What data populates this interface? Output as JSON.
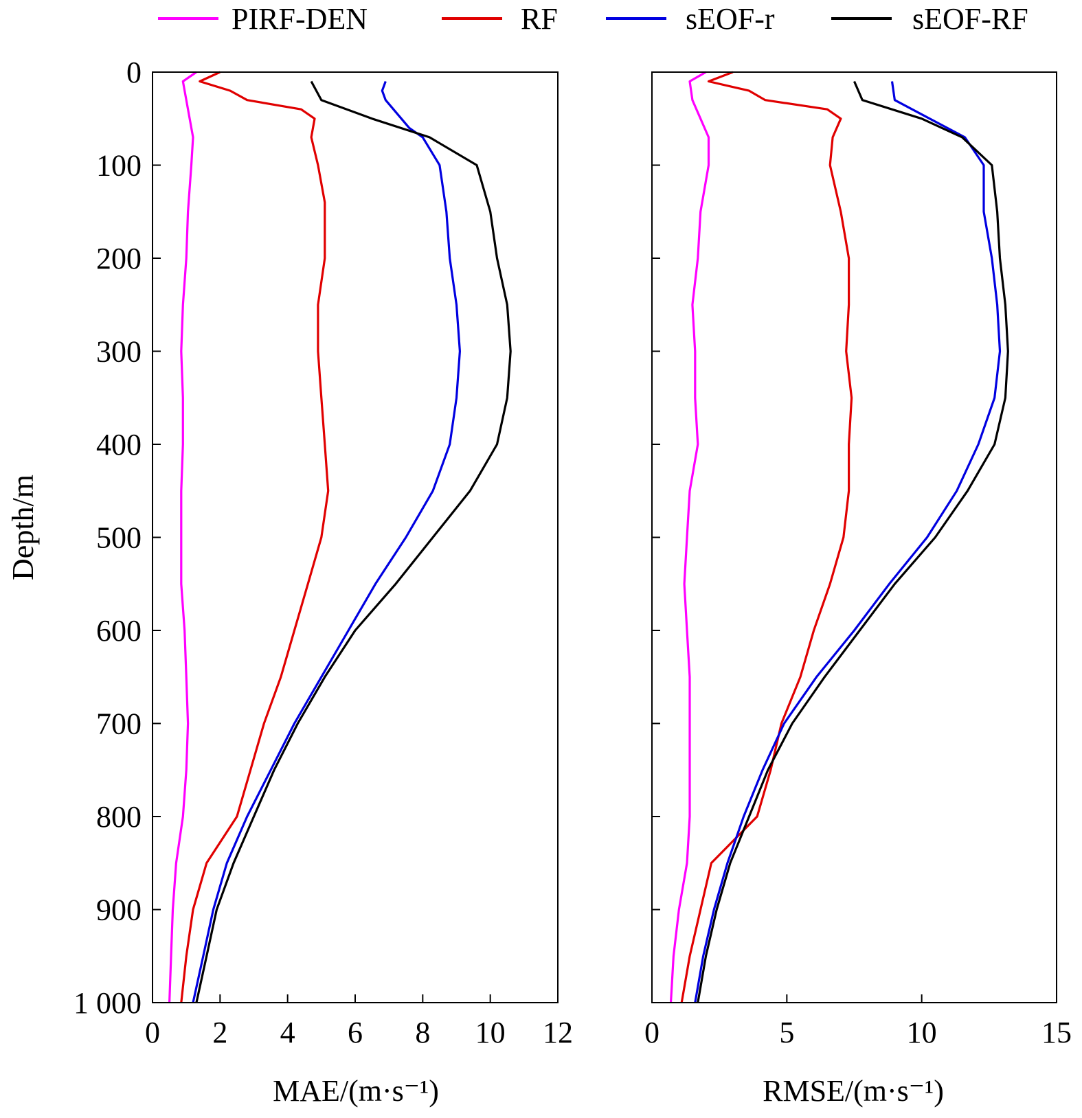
{
  "legend": {
    "placement": "top",
    "items": [
      {
        "label": "PIRF-DEN",
        "color": "#ff00ff"
      },
      {
        "label": "RF",
        "color": "#e00000"
      },
      {
        "label": "sEOF-r",
        "color": "#0000e0"
      },
      {
        "label": "sEOF-RF",
        "color": "#000000"
      }
    ]
  },
  "shared_ylabel": "Depth/m",
  "chart_data": [
    {
      "type": "line",
      "orientation": "depth-profile",
      "xlabel": "MAE/(m·s⁻¹)",
      "ylabel": "Depth/m",
      "xlim": [
        0,
        12
      ],
      "ylim": [
        1000,
        0
      ],
      "x_ticks": [
        "0",
        "2",
        "4",
        "6",
        "8",
        "10",
        "12"
      ],
      "y_ticks": [
        "0",
        "100",
        "200",
        "300",
        "400",
        "500",
        "600",
        "700",
        "800",
        "900",
        "1 000"
      ],
      "grid": false,
      "series": [
        {
          "name": "PIRF-DEN",
          "color": "#ff00ff",
          "points": [
            [
              1.3,
              0
            ],
            [
              0.9,
              10
            ],
            [
              1.0,
              30
            ],
            [
              1.1,
              50
            ],
            [
              1.2,
              70
            ],
            [
              1.15,
              100
            ],
            [
              1.05,
              150
            ],
            [
              1.0,
              200
            ],
            [
              0.9,
              250
            ],
            [
              0.85,
              300
            ],
            [
              0.9,
              350
            ],
            [
              0.9,
              400
            ],
            [
              0.85,
              450
            ],
            [
              0.85,
              500
            ],
            [
              0.85,
              550
            ],
            [
              0.95,
              600
            ],
            [
              1.0,
              650
            ],
            [
              1.05,
              700
            ],
            [
              1.0,
              750
            ],
            [
              0.9,
              800
            ],
            [
              0.7,
              850
            ],
            [
              0.6,
              900
            ],
            [
              0.55,
              950
            ],
            [
              0.5,
              1000
            ]
          ]
        },
        {
          "name": "RF",
          "color": "#e00000",
          "points": [
            [
              2.0,
              0
            ],
            [
              1.4,
              10
            ],
            [
              2.3,
              20
            ],
            [
              2.8,
              30
            ],
            [
              4.4,
              40
            ],
            [
              4.8,
              50
            ],
            [
              4.7,
              70
            ],
            [
              4.9,
              100
            ],
            [
              5.1,
              140
            ],
            [
              5.1,
              200
            ],
            [
              4.9,
              250
            ],
            [
              4.9,
              300
            ],
            [
              5.0,
              350
            ],
            [
              5.1,
              400
            ],
            [
              5.2,
              450
            ],
            [
              5.0,
              500
            ],
            [
              4.6,
              550
            ],
            [
              4.2,
              600
            ],
            [
              3.8,
              650
            ],
            [
              3.3,
              700
            ],
            [
              2.9,
              750
            ],
            [
              2.5,
              800
            ],
            [
              1.6,
              850
            ],
            [
              1.2,
              900
            ],
            [
              1.0,
              950
            ],
            [
              0.85,
              1000
            ]
          ]
        },
        {
          "name": "sEOF-r",
          "color": "#0000e0",
          "points": [
            [
              6.9,
              10
            ],
            [
              6.8,
              20
            ],
            [
              6.9,
              30
            ],
            [
              7.6,
              60
            ],
            [
              8.0,
              70
            ],
            [
              8.5,
              100
            ],
            [
              8.7,
              150
            ],
            [
              8.8,
              200
            ],
            [
              9.0,
              250
            ],
            [
              9.1,
              300
            ],
            [
              9.0,
              350
            ],
            [
              8.8,
              400
            ],
            [
              8.3,
              450
            ],
            [
              7.5,
              500
            ],
            [
              6.6,
              550
            ],
            [
              5.8,
              600
            ],
            [
              5.0,
              650
            ],
            [
              4.2,
              700
            ],
            [
              3.5,
              750
            ],
            [
              2.8,
              800
            ],
            [
              2.2,
              850
            ],
            [
              1.8,
              900
            ],
            [
              1.5,
              950
            ],
            [
              1.2,
              1000
            ]
          ]
        },
        {
          "name": "sEOF-RF",
          "color": "#000000",
          "points": [
            [
              4.7,
              10
            ],
            [
              5.0,
              30
            ],
            [
              6.5,
              50
            ],
            [
              8.2,
              70
            ],
            [
              9.6,
              100
            ],
            [
              10.0,
              150
            ],
            [
              10.2,
              200
            ],
            [
              10.5,
              250
            ],
            [
              10.6,
              300
            ],
            [
              10.5,
              350
            ],
            [
              10.2,
              400
            ],
            [
              9.4,
              450
            ],
            [
              8.3,
              500
            ],
            [
              7.2,
              550
            ],
            [
              6.0,
              600
            ],
            [
              5.1,
              650
            ],
            [
              4.3,
              700
            ],
            [
              3.6,
              750
            ],
            [
              3.0,
              800
            ],
            [
              2.4,
              850
            ],
            [
              1.9,
              900
            ],
            [
              1.6,
              950
            ],
            [
              1.3,
              1000
            ]
          ]
        }
      ]
    },
    {
      "type": "line",
      "orientation": "depth-profile",
      "xlabel": "RMSE/(m·s⁻¹)",
      "ylabel": "",
      "xlim": [
        0,
        15
      ],
      "ylim": [
        1000,
        0
      ],
      "x_ticks": [
        "0",
        "5",
        "10",
        "15"
      ],
      "grid": false,
      "series": [
        {
          "name": "PIRF-DEN",
          "color": "#ff00ff",
          "points": [
            [
              2.0,
              0
            ],
            [
              1.4,
              10
            ],
            [
              1.5,
              30
            ],
            [
              1.8,
              50
            ],
            [
              2.1,
              70
            ],
            [
              2.1,
              100
            ],
            [
              1.8,
              150
            ],
            [
              1.7,
              200
            ],
            [
              1.5,
              250
            ],
            [
              1.6,
              300
            ],
            [
              1.6,
              350
            ],
            [
              1.7,
              400
            ],
            [
              1.4,
              450
            ],
            [
              1.3,
              500
            ],
            [
              1.2,
              550
            ],
            [
              1.3,
              600
            ],
            [
              1.4,
              650
            ],
            [
              1.4,
              700
            ],
            [
              1.4,
              750
            ],
            [
              1.4,
              800
            ],
            [
              1.3,
              850
            ],
            [
              1.0,
              900
            ],
            [
              0.8,
              950
            ],
            [
              0.7,
              1000
            ]
          ]
        },
        {
          "name": "RF",
          "color": "#e00000",
          "points": [
            [
              3.0,
              0
            ],
            [
              2.1,
              10
            ],
            [
              3.6,
              20
            ],
            [
              4.2,
              30
            ],
            [
              6.5,
              40
            ],
            [
              7.0,
              50
            ],
            [
              6.7,
              70
            ],
            [
              6.6,
              100
            ],
            [
              7.0,
              150
            ],
            [
              7.3,
              200
            ],
            [
              7.3,
              250
            ],
            [
              7.2,
              300
            ],
            [
              7.4,
              350
            ],
            [
              7.3,
              400
            ],
            [
              7.3,
              450
            ],
            [
              7.1,
              500
            ],
            [
              6.6,
              550
            ],
            [
              6.0,
              600
            ],
            [
              5.5,
              650
            ],
            [
              4.8,
              700
            ],
            [
              4.4,
              750
            ],
            [
              3.9,
              800
            ],
            [
              2.2,
              850
            ],
            [
              1.8,
              900
            ],
            [
              1.4,
              950
            ],
            [
              1.1,
              1000
            ]
          ]
        },
        {
          "name": "sEOF-r",
          "color": "#0000e0",
          "points": [
            [
              8.9,
              10
            ],
            [
              9.0,
              30
            ],
            [
              10.3,
              50
            ],
            [
              11.6,
              70
            ],
            [
              12.3,
              100
            ],
            [
              12.3,
              150
            ],
            [
              12.6,
              200
            ],
            [
              12.8,
              250
            ],
            [
              12.9,
              300
            ],
            [
              12.7,
              350
            ],
            [
              12.1,
              400
            ],
            [
              11.3,
              450
            ],
            [
              10.2,
              500
            ],
            [
              8.8,
              550
            ],
            [
              7.5,
              600
            ],
            [
              6.1,
              650
            ],
            [
              4.9,
              700
            ],
            [
              4.1,
              750
            ],
            [
              3.4,
              800
            ],
            [
              2.8,
              850
            ],
            [
              2.3,
              900
            ],
            [
              1.9,
              950
            ],
            [
              1.6,
              1000
            ]
          ]
        },
        {
          "name": "sEOF-RF",
          "color": "#000000",
          "points": [
            [
              7.5,
              10
            ],
            [
              7.8,
              30
            ],
            [
              10.0,
              50
            ],
            [
              11.5,
              70
            ],
            [
              12.6,
              100
            ],
            [
              12.8,
              150
            ],
            [
              12.9,
              200
            ],
            [
              13.1,
              250
            ],
            [
              13.2,
              300
            ],
            [
              13.1,
              350
            ],
            [
              12.7,
              400
            ],
            [
              11.7,
              450
            ],
            [
              10.5,
              500
            ],
            [
              9.0,
              550
            ],
            [
              7.7,
              600
            ],
            [
              6.4,
              650
            ],
            [
              5.2,
              700
            ],
            [
              4.3,
              750
            ],
            [
              3.6,
              800
            ],
            [
              2.9,
              850
            ],
            [
              2.4,
              900
            ],
            [
              2.0,
              950
            ],
            [
              1.7,
              1000
            ]
          ]
        }
      ]
    }
  ]
}
